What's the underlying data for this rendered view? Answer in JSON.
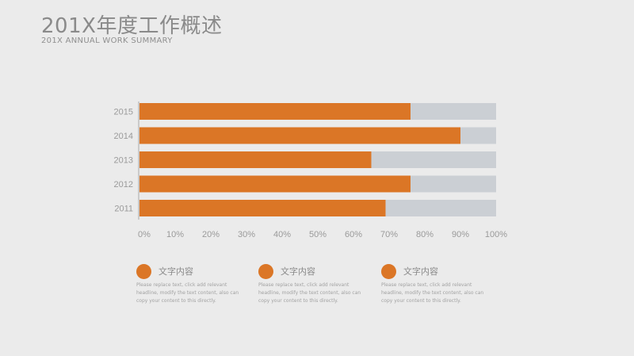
{
  "header": {
    "title": "201X年度工作概述",
    "subtitle": "201X ANNUAL WORK SUMMARY"
  },
  "colors": {
    "bar": "#db7626",
    "track": "#cbcfd4",
    "axis": "#a8a8a8",
    "text": "#9a9a9a"
  },
  "chart_data": {
    "type": "bar",
    "orientation": "horizontal",
    "categories": [
      "2015",
      "2014",
      "2013",
      "2012",
      "2011"
    ],
    "values": [
      76,
      90,
      65,
      76,
      69
    ],
    "xlim": [
      0,
      100
    ],
    "xticks": [
      "0%",
      "10%",
      "20%",
      "30%",
      "40%",
      "50%",
      "60%",
      "70%",
      "80%",
      "90%",
      "100%"
    ],
    "background_track": true,
    "title": "",
    "xlabel": "",
    "ylabel": "",
    "grid": false
  },
  "legend": [
    {
      "title": "文字内容",
      "body": "Please replace text, click add relevant headline, modify the text content, also can copy your content to this directly."
    },
    {
      "title": "文字内容",
      "body": "Please replace text, click add relevant headline, modify the text content, also can copy your content to this directly."
    },
    {
      "title": "文字内容",
      "body": "Please replace text, click add relevant headline, modify the text content, also can copy your content to this directly."
    }
  ]
}
